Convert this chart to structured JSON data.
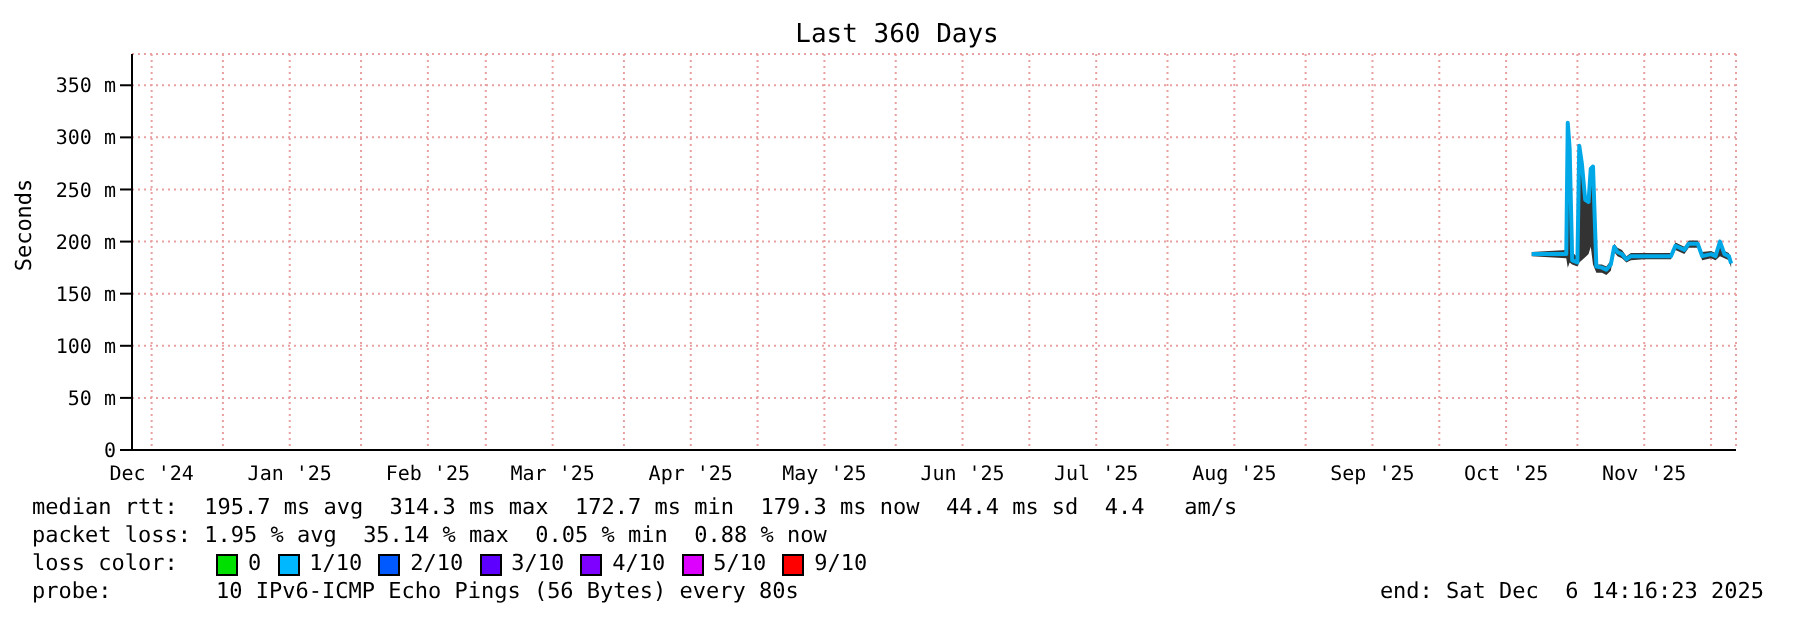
{
  "chart_data": {
    "type": "line",
    "title": "Last 360 Days",
    "ylabel": "Seconds",
    "xlim": [
      "2024-12-11T14:16",
      "2025-12-06T14:16"
    ],
    "xticks": [
      {
        "value": "2024-12-16",
        "label": "Dec '24"
      },
      {
        "value": "2025-01-01",
        "label": null
      },
      {
        "value": "2025-01-16",
        "label": "Jan '25"
      },
      {
        "value": "2025-02-01",
        "label": null
      },
      {
        "value": "2025-02-16",
        "label": "Feb '25"
      },
      {
        "value": "2025-03-01",
        "label": null
      },
      {
        "value": "2025-03-16",
        "label": "Mar '25"
      },
      {
        "value": "2025-04-01",
        "label": null
      },
      {
        "value": "2025-04-16",
        "label": "Apr '25"
      },
      {
        "value": "2025-05-01",
        "label": null
      },
      {
        "value": "2025-05-16",
        "label": "May '25"
      },
      {
        "value": "2025-06-01",
        "label": null
      },
      {
        "value": "2025-06-16",
        "label": "Jun '25"
      },
      {
        "value": "2025-07-01",
        "label": null
      },
      {
        "value": "2025-07-16",
        "label": "Jul '25"
      },
      {
        "value": "2025-08-01",
        "label": null
      },
      {
        "value": "2025-08-16",
        "label": "Aug '25"
      },
      {
        "value": "2025-09-01",
        "label": null
      },
      {
        "value": "2025-09-16",
        "label": "Sep '25"
      },
      {
        "value": "2025-10-01",
        "label": null
      },
      {
        "value": "2025-10-16",
        "label": "Oct '25"
      },
      {
        "value": "2025-11-01",
        "label": null
      },
      {
        "value": "2025-11-16",
        "label": "Nov '25"
      },
      {
        "value": "2025-12-01",
        "label": null
      }
    ],
    "ylim": [
      0,
      380
    ],
    "yticks": [
      0,
      {
        "value": 50,
        "label": "50 m"
      },
      {
        "value": 100,
        "label": "100 m"
      },
      {
        "value": 150,
        "label": "150 m"
      },
      {
        "value": 200,
        "label": "200 m"
      },
      {
        "value": 250,
        "label": "250 m"
      },
      {
        "value": 300,
        "label": "300 m"
      },
      {
        "value": 350,
        "label": "350 m"
      }
    ],
    "grid": true,
    "marker": "none",
    "line_style": "solid",
    "x": [
      "2025-10-21T18:00",
      "2025-10-29T12:00",
      "2025-10-29T20:00",
      "2025-10-30T06:00",
      "2025-10-30T20:00",
      "2025-11-01T00:00",
      "2025-11-01T10:00",
      "2025-11-02T00:00",
      "2025-11-02T18:00",
      "2025-11-03T12:00",
      "2025-11-04T00:00",
      "2025-11-04T12:00",
      "2025-11-05T06:00",
      "2025-11-06T12:00",
      "2025-11-07T12:00",
      "2025-11-08T12:00",
      "2025-11-09T06:00",
      "2025-11-10T00:00",
      "2025-11-11T00:00",
      "2025-11-12T00:00",
      "2025-11-13T00:00",
      "2025-11-16T00:00",
      "2025-11-18T00:00",
      "2025-11-22T00:00",
      "2025-11-23T00:00",
      "2025-11-25T00:00",
      "2025-11-26T00:00",
      "2025-11-28T00:00",
      "2025-11-29T00:00",
      "2025-12-01T00:00",
      "2025-12-02T00:00",
      "2025-12-03T00:00",
      "2025-12-04T00:00",
      "2025-12-05T00:00",
      "2025-12-05T12:00"
    ],
    "series": [
      {
        "color": "#00a8e8",
        "values": [
          188,
          188,
          314,
          290,
          182,
          180,
          292,
          275,
          240,
          238,
          270,
          272,
          176,
          175,
          173,
          178,
          195,
          190,
          188,
          183,
          186,
          186,
          186,
          186,
          196,
          192,
          198,
          198,
          186,
          188,
          186,
          200,
          188,
          186,
          179
        ],
        "lower": [
          186,
          184,
          175,
          180,
          178,
          176,
          180,
          182,
          185,
          188,
          195,
          178,
          170,
          170,
          168,
          172,
          190,
          186,
          184,
          180,
          182,
          183,
          183,
          183,
          192,
          188,
          194,
          194,
          182,
          184,
          182,
          186,
          184,
          182,
          175
        ],
        "upper": [
          190,
          192,
          316,
          292,
          190,
          185,
          294,
          280,
          245,
          240,
          272,
          274,
          178,
          178,
          176,
          182,
          198,
          194,
          192,
          186,
          189,
          189,
          189,
          189,
          199,
          195,
          201,
          201,
          190,
          191,
          189,
          202,
          191,
          189,
          182
        ]
      }
    ],
    "annotations": [
      "median rtt:  195.7 ms avg  314.3 ms max  172.7 ms min  179.3 ms now  44.4 ms sd  4.4   am/s",
      "packet loss: 1.95 % avg  35.14 % max  0.05 % min  0.88 % now",
      "loss color:",
      "0",
      "1/10",
      "2/10",
      "3/10",
      "4/10",
      "5/10",
      "9/10",
      "probe:",
      "10 IPv6-ICMP Echo Pings (56 Bytes) every 80s",
      "end: Sat Dec  6 14:16:23 2025"
    ]
  }
}
